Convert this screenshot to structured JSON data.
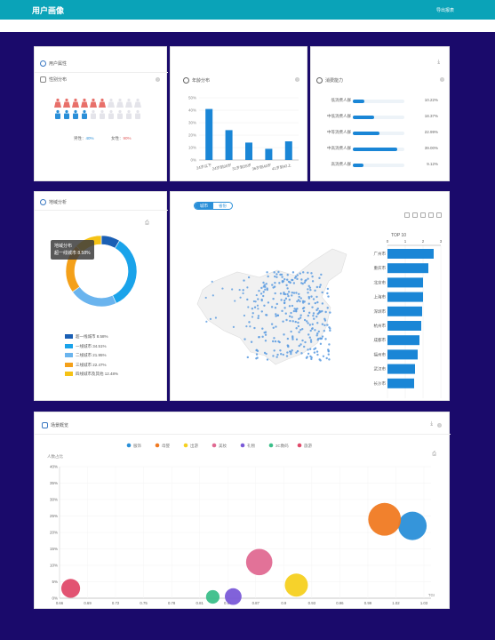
{
  "header": {
    "title": "用户画像",
    "export_label": "导出报表"
  },
  "user_attr": {
    "title": "用户属性",
    "gender_title": "性别分布",
    "male_label": "男性：",
    "male_value": "40%",
    "female_label": "女性：",
    "female_value": "90%"
  },
  "age": {
    "title": "年龄分布",
    "ylim": [
      0,
      50
    ],
    "yticks": [
      "50%",
      "40%",
      "30%",
      "20%",
      "10%",
      "0%"
    ],
    "categories": [
      "24岁以下",
      "24岁到30岁",
      "31岁到35岁",
      "36岁到40岁",
      "41岁到42上"
    ],
    "values": [
      41,
      24,
      14,
      9,
      15
    ]
  },
  "consumption": {
    "title": "消费能力",
    "items": [
      {
        "label": "低消费人群",
        "value": "10.22%",
        "pct": 10.22
      },
      {
        "label": "中低消费人群",
        "value": "18.37%",
        "pct": 18.37
      },
      {
        "label": "中等消费人群",
        "value": "22.99%",
        "pct": 22.99
      },
      {
        "label": "中高消费人群",
        "value": "39.00%",
        "pct": 39.0
      },
      {
        "label": "高消费人群",
        "value": "9.12%",
        "pct": 9.12
      }
    ]
  },
  "region": {
    "title": "地域分析",
    "tooltip_title": "地域分布",
    "tooltip_text": "超一线城市 8.58%",
    "legend": [
      {
        "label": "超一线城市 8.58%",
        "color": "#1a5fb4",
        "value": 8.58
      },
      {
        "label": "一线城市 34.51%",
        "color": "#1aa3ea",
        "value": 34.51
      },
      {
        "label": "二线城市 21.95%",
        "color": "#6ab4ee",
        "value": 21.95
      },
      {
        "label": "三线城市 22.47%",
        "color": "#f4a019",
        "value": 22.47
      },
      {
        "label": "四线城市及其他 12.48%",
        "color": "#f5c215",
        "value": 12.48
      }
    ]
  },
  "map": {
    "toggle_city": "城市",
    "toggle_province": "省份",
    "top_title": "TOP 10",
    "xticks": [
      "0",
      "1",
      "2",
      "3"
    ],
    "cities": [
      "广州市",
      "重庆市",
      "北京市",
      "上海市",
      "深圳市",
      "杭州市",
      "成都市",
      "福州市",
      "武汉市",
      "长沙市"
    ],
    "values": [
      2.6,
      2.3,
      2.0,
      2.0,
      1.95,
      1.9,
      1.8,
      1.7,
      1.55,
      1.5
    ]
  },
  "scene": {
    "title": "场景概览",
    "ylabel": "人数占比",
    "xlabel_end": "TGI",
    "yticks": [
      "40%",
      "35%",
      "30%",
      "25%",
      "20%",
      "15%",
      "10%",
      "5%",
      "0%"
    ],
    "xticks": [
      "0.66",
      "0.69",
      "0.72",
      "0.75",
      "0.78",
      "0.81",
      "0.84",
      "0.87",
      "0.9",
      "0.93",
      "0.96",
      "0.99",
      "1.02",
      "1.03"
    ],
    "legend": [
      {
        "name": "服饰",
        "color": "#2a8fd8"
      },
      {
        "name": "母婴",
        "color": "#f07a22"
      },
      {
        "name": "出游",
        "color": "#f5d020"
      },
      {
        "name": "美妆",
        "color": "#e06a92"
      },
      {
        "name": "礼物",
        "color": "#7a5ad8"
      },
      {
        "name": "3C数码",
        "color": "#3cbf8a"
      },
      {
        "name": "旅游",
        "color": "#e04a6a"
      }
    ]
  },
  "chart_data": [
    {
      "type": "bar",
      "title": "年龄分布",
      "categories": [
        "24岁以下",
        "24岁到30岁",
        "31岁到35岁",
        "36岁到40岁",
        "41岁到42上"
      ],
      "values": [
        41,
        24,
        14,
        9,
        15
      ],
      "ylim": [
        0,
        50
      ]
    },
    {
      "type": "pie",
      "title": "地域分析",
      "categories": [
        "超一线城市",
        "一线城市",
        "二线城市",
        "三线城市",
        "四线城市及其他"
      ],
      "values": [
        8.58,
        34.51,
        21.95,
        22.47,
        12.48
      ]
    },
    {
      "type": "bar",
      "title": "TOP 10",
      "categories": [
        "广州市",
        "重庆市",
        "北京市",
        "上海市",
        "深圳市",
        "杭州市",
        "成都市",
        "福州市",
        "武汉市",
        "长沙市"
      ],
      "values": [
        2.6,
        2.3,
        2.0,
        2.0,
        1.95,
        1.9,
        1.8,
        1.7,
        1.55,
        1.5
      ],
      "xlim": [
        0,
        3
      ]
    },
    {
      "type": "scatter",
      "title": "场景概览",
      "ylabel": "人数占比",
      "xlabel": "TGI",
      "series": [
        {
          "name": "服饰",
          "x": 1.04,
          "y": 22,
          "size": 1.0
        },
        {
          "name": "母婴",
          "x": 1.01,
          "y": 24,
          "size": 1.2
        },
        {
          "name": "出游",
          "x": 0.915,
          "y": 4,
          "size": 0.75
        },
        {
          "name": "美妆",
          "x": 0.875,
          "y": 11,
          "size": 0.9
        },
        {
          "name": "礼物",
          "x": 0.847,
          "y": 0.5,
          "size": 0.45
        },
        {
          "name": "3C数码",
          "x": 0.825,
          "y": 0.4,
          "size": 0.3
        },
        {
          "name": "旅游",
          "x": 0.672,
          "y": 3,
          "size": 0.55
        }
      ],
      "xlim": [
        0.66,
        1.06
      ],
      "ylim": [
        0,
        40
      ]
    }
  ]
}
